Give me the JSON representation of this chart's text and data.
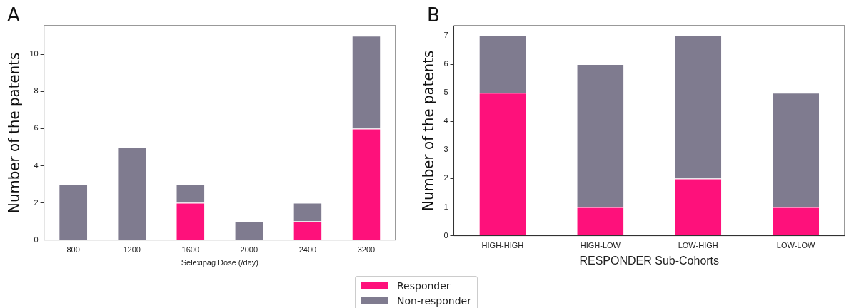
{
  "chart_data": [
    {
      "type": "bar",
      "stacked": true,
      "annotations": [
        "A"
      ],
      "xlabel": "Selexipag Dose (/day)",
      "ylabel": "Number of the patents",
      "categories": [
        "800",
        "1200",
        "1600",
        "2000",
        "2400",
        "3200"
      ],
      "ylim": [
        0,
        11.55
      ],
      "yticks": [
        0,
        2,
        4,
        6,
        8,
        10
      ],
      "grid": false,
      "legend": "bottom",
      "series": [
        {
          "name": "Responder",
          "color": "#fe117b",
          "values": [
            0,
            0,
            2,
            0,
            1,
            6
          ]
        },
        {
          "name": "Non-responder",
          "color": "#7f7b8f",
          "values": [
            3,
            5,
            1,
            1,
            1,
            5
          ]
        }
      ]
    },
    {
      "type": "bar",
      "stacked": true,
      "annotations": [
        "B"
      ],
      "xlabel": "RESPONDER Sub-Cohorts",
      "ylabel": "Number of the patents",
      "categories": [
        "HIGH-HIGH",
        "HIGH-LOW",
        "LOW-HIGH",
        "LOW-LOW"
      ],
      "ylim": [
        0,
        7.35
      ],
      "yticks": [
        0,
        1,
        2,
        3,
        4,
        5,
        6,
        7
      ],
      "grid": false,
      "series": [
        {
          "color": "#fe117b",
          "values": [
            5,
            1,
            2,
            1
          ]
        },
        {
          "color": "#7f7b8f",
          "values": [
            2,
            5,
            5,
            4
          ]
        }
      ]
    }
  ]
}
